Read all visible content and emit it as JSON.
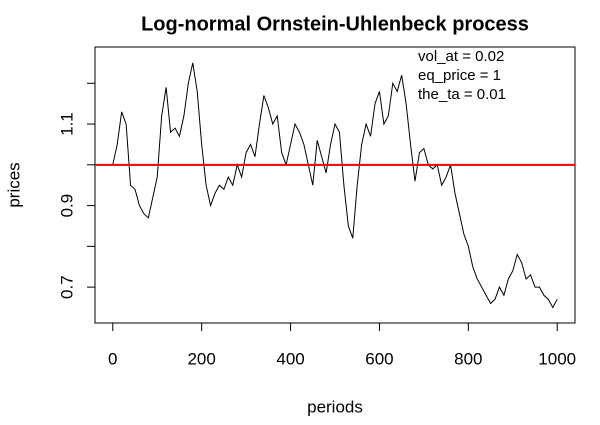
{
  "chart_data": {
    "type": "line",
    "title": "Log-normal Ornstein-Uhlenbeck process",
    "xlabel": "periods",
    "ylabel": "prices",
    "annotations": [
      "vol_at = 0.02",
      "eq_price = 1",
      "the_ta = 0.01"
    ],
    "x": [
      0,
      10,
      20,
      30,
      40,
      50,
      60,
      70,
      80,
      90,
      100,
      110,
      120,
      130,
      140,
      150,
      160,
      170,
      180,
      190,
      200,
      210,
      220,
      230,
      240,
      250,
      260,
      270,
      280,
      290,
      300,
      310,
      320,
      330,
      340,
      350,
      360,
      370,
      380,
      390,
      400,
      410,
      420,
      430,
      440,
      450,
      460,
      470,
      480,
      490,
      500,
      510,
      520,
      530,
      540,
      550,
      560,
      570,
      580,
      590,
      600,
      610,
      620,
      630,
      640,
      650,
      660,
      670,
      680,
      690,
      700,
      710,
      720,
      730,
      740,
      750,
      760,
      770,
      780,
      790,
      800,
      810,
      820,
      830,
      840,
      850,
      860,
      870,
      880,
      890,
      900,
      910,
      920,
      930,
      940,
      950,
      960,
      970,
      980,
      990,
      1000
    ],
    "series": [
      {
        "name": "prices",
        "color": "#000000",
        "values": [
          1.0,
          1.05,
          1.13,
          1.1,
          0.95,
          0.94,
          0.9,
          0.88,
          0.87,
          0.92,
          0.97,
          1.12,
          1.19,
          1.08,
          1.09,
          1.07,
          1.12,
          1.2,
          1.25,
          1.18,
          1.05,
          0.95,
          0.9,
          0.93,
          0.95,
          0.94,
          0.97,
          0.95,
          1.0,
          0.97,
          1.03,
          1.05,
          1.02,
          1.1,
          1.17,
          1.14,
          1.1,
          1.12,
          1.03,
          1.0,
          1.05,
          1.1,
          1.08,
          1.05,
          1.0,
          0.95,
          1.06,
          1.02,
          0.98,
          1.05,
          1.1,
          1.08,
          0.95,
          0.85,
          0.82,
          0.95,
          1.05,
          1.1,
          1.07,
          1.15,
          1.18,
          1.1,
          1.12,
          1.2,
          1.18,
          1.22,
          1.15,
          1.05,
          0.96,
          1.03,
          1.04,
          1.0,
          0.99,
          1.0,
          0.95,
          0.97,
          1.0,
          0.93,
          0.88,
          0.83,
          0.8,
          0.75,
          0.72,
          0.7,
          0.68,
          0.66,
          0.67,
          0.7,
          0.68,
          0.72,
          0.74,
          0.78,
          0.76,
          0.72,
          0.73,
          0.7,
          0.7,
          0.68,
          0.67,
          0.65,
          0.67
        ]
      }
    ],
    "hline": {
      "value": 1,
      "color": "#ff0000"
    },
    "xlim": [
      -40,
      1040
    ],
    "xticks": [
      0,
      200,
      400,
      600,
      800,
      1000
    ],
    "ylim": [
      0.612,
      1.289
    ],
    "yticks": [
      0.7,
      0.9,
      1.1
    ],
    "yticks_unlabeled": [
      0.8,
      1.0,
      1.2
    ]
  }
}
